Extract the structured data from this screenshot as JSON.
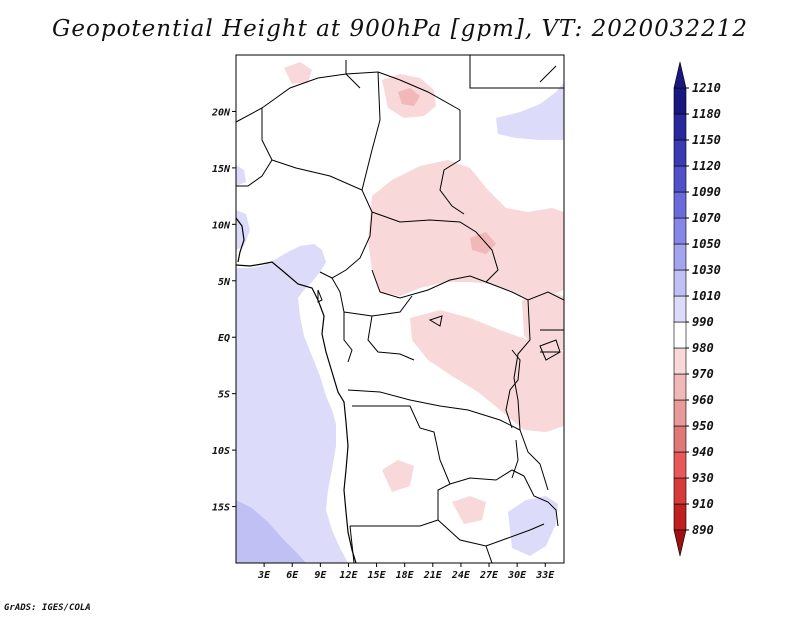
{
  "title": "Geopotential Height at 900hPa [gpm], VT: 2020032212",
  "footer": "GrADS: IGES/COLA",
  "chart_data": {
    "type": "heatmap",
    "variable": "Geopotential Height",
    "level": "900hPa",
    "units": "gpm",
    "valid_time": "2020032212",
    "lon_range": [
      0,
      35
    ],
    "lat_range": [
      -20,
      25
    ],
    "x_ticks": [
      "3E",
      "6E",
      "9E",
      "12E",
      "15E",
      "18E",
      "21E",
      "24E",
      "27E",
      "30E",
      "33E"
    ],
    "x_tick_values": [
      3,
      6,
      9,
      12,
      15,
      18,
      21,
      24,
      27,
      30,
      33
    ],
    "y_ticks": [
      "20N",
      "15N",
      "10N",
      "5N",
      "EQ",
      "5S",
      "10S",
      "15S"
    ],
    "y_tick_values": [
      20,
      15,
      10,
      5,
      0,
      -5,
      -10,
      -15
    ],
    "colorbar": {
      "levels": [
        890,
        910,
        930,
        940,
        950,
        960,
        970,
        980,
        990,
        1010,
        1030,
        1050,
        1070,
        1090,
        1120,
        1150,
        1180,
        1210
      ],
      "colors": [
        "#a01010",
        "#c02020",
        "#d83a3a",
        "#e85858",
        "#e07878",
        "#e89a9a",
        "#f0b8b8",
        "#f8d8d8",
        "#ffffff",
        "#dcdcfa",
        "#c0c0f4",
        "#a4a4ee",
        "#8686e6",
        "#6a6ad8",
        "#5050c8",
        "#3a3ab4",
        "#28289c",
        "#181880"
      ]
    },
    "field_regions": [
      {
        "name": "atlantic-ocean",
        "category": "1010-1030"
      },
      {
        "name": "southwest-corner",
        "category": "1030-1050"
      },
      {
        "name": "northeast-corner",
        "category": "1010-1030"
      },
      {
        "name": "sahel-low",
        "category": "980-990"
      },
      {
        "name": "congo-low",
        "category": "980-990"
      },
      {
        "name": "east-africa-low",
        "category": "980-990"
      }
    ]
  }
}
